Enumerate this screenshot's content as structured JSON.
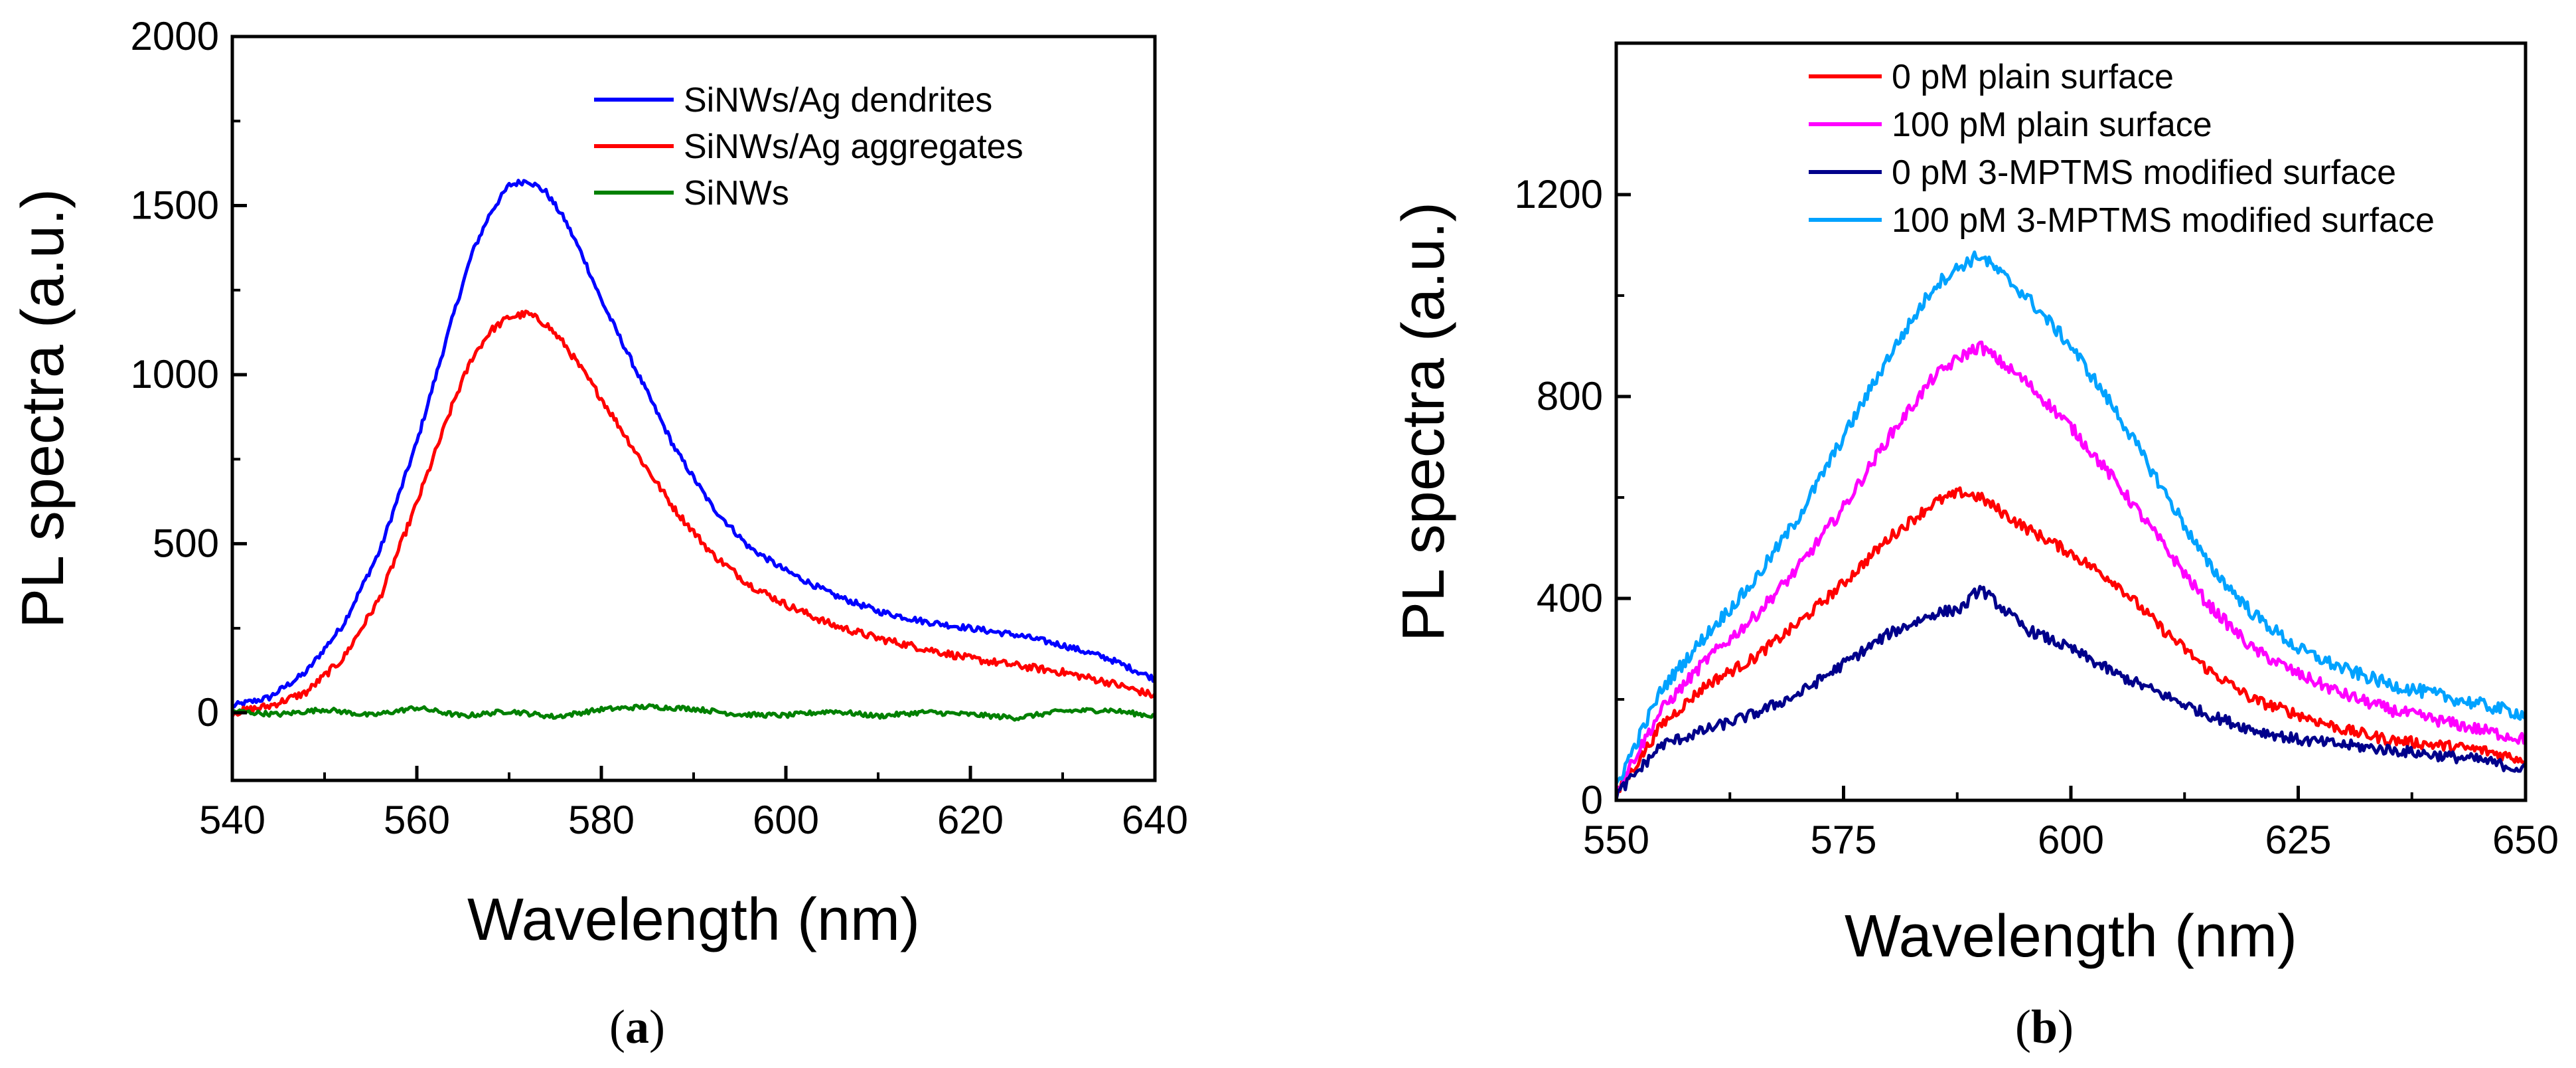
{
  "chart_data": [
    {
      "type": "line",
      "panel": "a",
      "xlabel": "Wavelength (nm)",
      "ylabel": "PL spectra (a.u.)",
      "xlim": [
        540,
        640
      ],
      "ylim": [
        -200,
        2000
      ],
      "xticks": [
        540,
        560,
        580,
        600,
        620,
        640
      ],
      "yticks": [
        0,
        500,
        1000,
        1500,
        2000
      ],
      "legend_position": "top-right",
      "series": [
        {
          "name": "SiNWs/Ag dendrites",
          "color": "#0000FF",
          "x": [
            540,
            544,
            548,
            552,
            556,
            560,
            564,
            566,
            568,
            570,
            572,
            574,
            576,
            578,
            580,
            584,
            588,
            592,
            596,
            600,
            605,
            610,
            615,
            620,
            625,
            630,
            635,
            640
          ],
          "y": [
            20,
            45,
            120,
            260,
            480,
            800,
            1180,
            1360,
            1480,
            1560,
            1575,
            1540,
            1460,
            1350,
            1220,
            1000,
            780,
            610,
            490,
            420,
            350,
            300,
            270,
            250,
            230,
            200,
            160,
            100
          ]
        },
        {
          "name": "SiNWs/Ag aggregates",
          "color": "#FF0000",
          "x": [
            540,
            544,
            548,
            552,
            556,
            560,
            564,
            566,
            568,
            570,
            572,
            574,
            576,
            578,
            580,
            584,
            588,
            592,
            596,
            600,
            605,
            610,
            615,
            620,
            625,
            630,
            635,
            640
          ],
          "y": [
            0,
            20,
            60,
            160,
            340,
            620,
            920,
            1050,
            1130,
            1170,
            1180,
            1150,
            1090,
            1010,
            930,
            760,
            600,
            470,
            380,
            320,
            260,
            220,
            190,
            160,
            140,
            120,
            90,
            50
          ]
        },
        {
          "name": "SiNWs",
          "color": "#008000",
          "x": [
            540,
            545,
            550,
            555,
            560,
            565,
            570,
            575,
            580,
            585,
            590,
            595,
            600,
            605,
            610,
            615,
            620,
            625,
            630,
            635,
            640
          ],
          "y": [
            5,
            -5,
            10,
            -8,
            15,
            -10,
            5,
            -12,
            10,
            18,
            12,
            -5,
            -8,
            5,
            -10,
            2,
            -5,
            -15,
            5,
            8,
            -10
          ]
        }
      ]
    },
    {
      "type": "line",
      "panel": "b",
      "xlabel": "Wavelength (nm)",
      "ylabel": "PL spectra (a.u.)",
      "xlim": [
        550,
        650
      ],
      "ylim": [
        0,
        1500
      ],
      "xticks": [
        550,
        575,
        600,
        625,
        650
      ],
      "yticks": [
        0,
        400,
        800,
        1200
      ],
      "legend_position": "top-right",
      "series": [
        {
          "name": "0 pM plain surface",
          "color": "#FF0000",
          "x": [
            550,
            555,
            560,
            565,
            570,
            575,
            580,
            585,
            588,
            590,
            595,
            600,
            605,
            610,
            615,
            620,
            625,
            630,
            635,
            640,
            645,
            650
          ],
          "y": [
            10,
            150,
            230,
            280,
            350,
            430,
            520,
            590,
            610,
            600,
            540,
            490,
            430,
            340,
            260,
            200,
            170,
            140,
            120,
            110,
            100,
            80
          ]
        },
        {
          "name": "100 pM plain surface",
          "color": "#FF00FF",
          "x": [
            550,
            555,
            560,
            565,
            570,
            575,
            580,
            585,
            588,
            590,
            595,
            600,
            605,
            610,
            615,
            620,
            625,
            630,
            635,
            640,
            645,
            650
          ],
          "y": [
            20,
            180,
            280,
            360,
            460,
            580,
            720,
            840,
            880,
            900,
            830,
            740,
            630,
            510,
            390,
            300,
            250,
            210,
            180,
            160,
            140,
            120
          ]
        },
        {
          "name": "0 pM 3-MPTMS modified surface",
          "color": "#00008B",
          "x": [
            550,
            555,
            560,
            565,
            570,
            575,
            580,
            585,
            588,
            590,
            595,
            600,
            605,
            610,
            615,
            620,
            625,
            630,
            635,
            640,
            645,
            650
          ],
          "y": [
            10,
            110,
            140,
            170,
            210,
            270,
            330,
            370,
            380,
            420,
            340,
            300,
            250,
            210,
            170,
            140,
            120,
            110,
            100,
            90,
            80,
            60
          ]
        },
        {
          "name": "100 pM 3-MPTMS modified surface",
          "color": "#00A2FF",
          "x": [
            550,
            555,
            560,
            565,
            570,
            575,
            580,
            585,
            588,
            590,
            595,
            600,
            605,
            610,
            615,
            620,
            625,
            630,
            635,
            640,
            645,
            650
          ],
          "y": [
            30,
            220,
            330,
            430,
            560,
            720,
            880,
            1020,
            1060,
            1080,
            1000,
            900,
            770,
            620,
            470,
            370,
            300,
            260,
            230,
            210,
            190,
            170
          ]
        }
      ]
    }
  ],
  "panel_labels": {
    "a_open": "(",
    "a": "a",
    "a_close": ")",
    "b_open": "(",
    "b": "b",
    "b_close": ")"
  }
}
